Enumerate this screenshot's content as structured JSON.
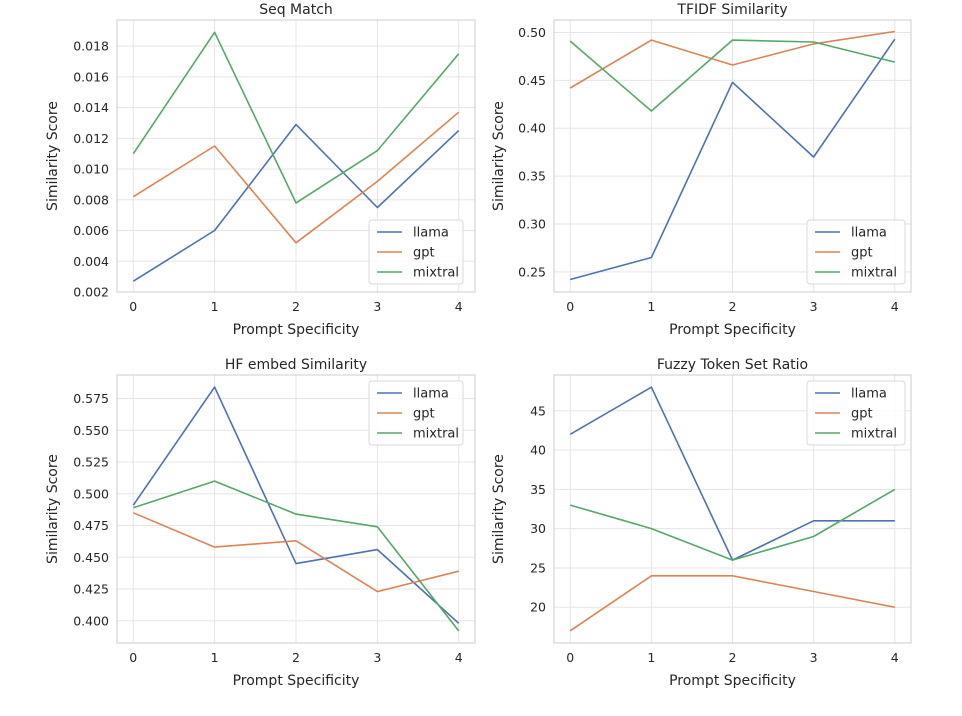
{
  "chart_data": [
    {
      "type": "line",
      "title": "Seq Match",
      "xlabel": "Prompt Specificity",
      "ylabel": "Similarity Score",
      "x": [
        0,
        1,
        2,
        3,
        4
      ],
      "xticks": [
        "0",
        "1",
        "2",
        "3",
        "4"
      ],
      "xlim": [
        -0.2,
        4.2
      ],
      "ylim": [
        0.002,
        0.0197
      ],
      "yticks": [
        0.002,
        0.004,
        0.006,
        0.008,
        0.01,
        0.012,
        0.014,
        0.016,
        0.018
      ],
      "ytick_labels": [
        "0.002",
        "0.004",
        "0.006",
        "0.008",
        "0.010",
        "0.012",
        "0.014",
        "0.016",
        "0.018"
      ],
      "legend": "lower right",
      "grid": true,
      "series": [
        {
          "name": "llama",
          "color": "#4c72b0",
          "values": [
            0.0027,
            0.006,
            0.0129,
            0.0075,
            0.0125
          ]
        },
        {
          "name": "gpt",
          "color": "#dd8452",
          "values": [
            0.0082,
            0.0115,
            0.0052,
            0.0092,
            0.0137
          ]
        },
        {
          "name": "mixtral",
          "color": "#55a868",
          "values": [
            0.011,
            0.0189,
            0.0078,
            0.0112,
            0.0175
          ]
        }
      ]
    },
    {
      "type": "line",
      "title": "TFIDF Similarity",
      "xlabel": "Prompt Specificity",
      "ylabel": "Similarity Score",
      "x": [
        0,
        1,
        2,
        3,
        4
      ],
      "xticks": [
        "0",
        "1",
        "2",
        "3",
        "4"
      ],
      "xlim": [
        -0.2,
        4.2
      ],
      "ylim": [
        0.229,
        0.513
      ],
      "yticks": [
        0.25,
        0.3,
        0.35,
        0.4,
        0.45,
        0.5
      ],
      "ytick_labels": [
        "0.25",
        "0.30",
        "0.35",
        "0.40",
        "0.45",
        "0.50"
      ],
      "legend": "lower right",
      "grid": true,
      "series": [
        {
          "name": "llama",
          "color": "#4c72b0",
          "values": [
            0.242,
            0.265,
            0.448,
            0.37,
            0.493
          ]
        },
        {
          "name": "gpt",
          "color": "#dd8452",
          "values": [
            0.442,
            0.492,
            0.466,
            0.488,
            0.501
          ]
        },
        {
          "name": "mixtral",
          "color": "#55a868",
          "values": [
            0.491,
            0.418,
            0.492,
            0.49,
            0.469
          ]
        }
      ]
    },
    {
      "type": "line",
      "title": "HF embed Similarity",
      "xlabel": "Prompt Specificity",
      "ylabel": "Similarity Score",
      "x": [
        0,
        1,
        2,
        3,
        4
      ],
      "xticks": [
        "0",
        "1",
        "2",
        "3",
        "4"
      ],
      "xlim": [
        -0.2,
        4.2
      ],
      "ylim": [
        0.3825,
        0.5935
      ],
      "yticks": [
        0.4,
        0.425,
        0.45,
        0.475,
        0.5,
        0.525,
        0.55,
        0.575
      ],
      "ytick_labels": [
        "0.400",
        "0.425",
        "0.450",
        "0.475",
        "0.500",
        "0.525",
        "0.550",
        "0.575"
      ],
      "legend": "upper right",
      "grid": true,
      "series": [
        {
          "name": "llama",
          "color": "#4c72b0",
          "values": [
            0.491,
            0.584,
            0.445,
            0.456,
            0.398
          ]
        },
        {
          "name": "gpt",
          "color": "#dd8452",
          "values": [
            0.485,
            0.458,
            0.463,
            0.423,
            0.439
          ]
        },
        {
          "name": "mixtral",
          "color": "#55a868",
          "values": [
            0.489,
            0.51,
            0.484,
            0.474,
            0.392
          ]
        }
      ]
    },
    {
      "type": "line",
      "title": "Fuzzy Token Set Ratio",
      "xlabel": "Prompt Specificity",
      "ylabel": "Similarity Score",
      "x": [
        0,
        1,
        2,
        3,
        4
      ],
      "xticks": [
        "0",
        "1",
        "2",
        "3",
        "4"
      ],
      "xlim": [
        -0.2,
        4.2
      ],
      "ylim": [
        15.45,
        49.55
      ],
      "yticks": [
        20,
        25,
        30,
        35,
        40,
        45
      ],
      "ytick_labels": [
        "20",
        "25",
        "30",
        "35",
        "40",
        "45"
      ],
      "legend": "upper right",
      "grid": true,
      "series": [
        {
          "name": "llama",
          "color": "#4c72b0",
          "values": [
            42,
            48,
            26,
            31,
            31
          ]
        },
        {
          "name": "gpt",
          "color": "#dd8452",
          "values": [
            17,
            24,
            24,
            22,
            20
          ]
        },
        {
          "name": "mixtral",
          "color": "#55a868",
          "values": [
            33,
            30,
            26,
            29,
            35
          ]
        }
      ]
    }
  ]
}
